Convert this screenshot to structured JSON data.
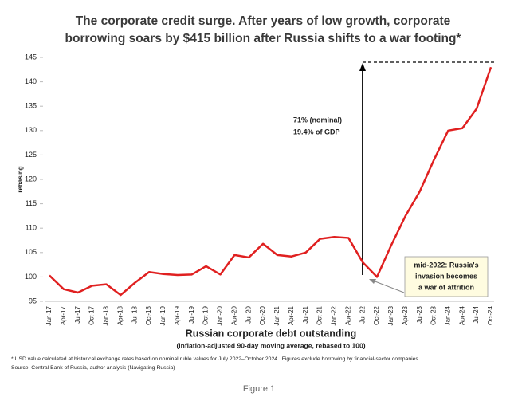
{
  "chart_data": {
    "type": "line",
    "title": [
      "The corporate credit surge.  After years of low growth, corporate",
      "borrowing soars by $415 billion after Russia shifts to a war footing*"
    ],
    "y_label": "rebasing",
    "x_label": "Russian corporate debt outstanding",
    "x_sublabel": "(inflation-adjusted 90-day moving average, rebased to 100)",
    "categories": [
      "Jan-17",
      "Apr-17",
      "Jul-17",
      "Oct-17",
      "Jan-18",
      "Apr-18",
      "Jul-18",
      "Oct-18",
      "Jan-19",
      "Apr-19",
      "Jul-19",
      "Oct-19",
      "Jan-20",
      "Apr-20",
      "Jul-20",
      "Oct-20",
      "Jan-21",
      "Apr-21",
      "Jul-21",
      "Oct-21",
      "Jan-22",
      "Apr-22",
      "Jul-22",
      "Oct-22",
      "Jan-23",
      "Apr-23",
      "Jul-23",
      "Oct-23",
      "Jan-24",
      "Apr-24",
      "Jul-24",
      "Oct-24"
    ],
    "series": [
      {
        "name": "Russian corporate debt",
        "color": "#e02020",
        "values": [
          100.3,
          97.5,
          96.8,
          98.2,
          98.5,
          96.3,
          98.8,
          101,
          100.6,
          100.4,
          100.5,
          102.2,
          100.5,
          104.5,
          104,
          106.8,
          104.5,
          104.2,
          105,
          107.8,
          108.2,
          108,
          103,
          100,
          106.5,
          112.5,
          117.5,
          124,
          130,
          130.5,
          134.5,
          143
        ]
      }
    ],
    "ylim": [
      95,
      145
    ],
    "yticks": [
      95,
      100,
      105,
      110,
      115,
      120,
      125,
      130,
      135,
      140,
      145
    ],
    "annotations": {
      "arrow_text": [
        "71% (nominal)",
        "19.4% of GDP"
      ],
      "box_text": [
        "mid-2022: Russia's",
        "invasion becomes",
        "a war of attrition"
      ]
    },
    "footnote": "* USD value calculated at historical exchange rates based on nominal ruble values for July 2022–October 2024 .  Figures exclude borrowing by financial-sector companies.",
    "source": "Source: Central Bank of Russia, author analysis (Navigating Russia)",
    "caption": "Figure 1"
  }
}
